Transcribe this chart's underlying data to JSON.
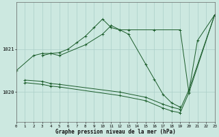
{
  "title": "Graphe pression niveau de la mer (hPa)",
  "background_color": "#cce8e0",
  "grid_color": "#aacfc8",
  "line_color": "#1a5c2a",
  "xlim": [
    0,
    23
  ],
  "ylim": [
    1019.3,
    1022.1
  ],
  "ytick_values": [
    1020,
    1021
  ],
  "series": [
    {
      "x": [
        0,
        2,
        3,
        4,
        5,
        6,
        7,
        8,
        9,
        10,
        11,
        12,
        13,
        16,
        19,
        20,
        21,
        23
      ],
      "y": [
        1020.5,
        1020.85,
        1020.9,
        1020.9,
        1020.92,
        1021.0,
        1021.15,
        1021.3,
        1021.5,
        1021.7,
        1021.5,
        1021.45,
        1021.45,
        1021.45,
        1021.45,
        1020.0,
        1021.2,
        1021.8
      ]
    },
    {
      "x": [
        3,
        4,
        5,
        8,
        10,
        11,
        12,
        13,
        15,
        16,
        17,
        18,
        19
      ],
      "y": [
        1020.85,
        1020.9,
        1020.85,
        1021.1,
        1021.35,
        1021.55,
        1021.45,
        1021.35,
        1020.65,
        1020.3,
        1019.95,
        1019.75,
        1019.65
      ]
    },
    {
      "x": [
        1,
        3,
        4,
        5,
        12,
        15,
        17,
        18,
        19,
        20,
        23
      ],
      "y": [
        1020.28,
        1020.25,
        1020.2,
        1020.18,
        1020.0,
        1019.88,
        1019.72,
        1019.65,
        1019.6,
        1020.05,
        1021.8
      ]
    },
    {
      "x": [
        1,
        3,
        4,
        5,
        12,
        15,
        17,
        18,
        19,
        20,
        23
      ],
      "y": [
        1020.22,
        1020.18,
        1020.14,
        1020.12,
        1019.92,
        1019.8,
        1019.63,
        1019.56,
        1019.52,
        1019.98,
        1021.8
      ]
    }
  ]
}
